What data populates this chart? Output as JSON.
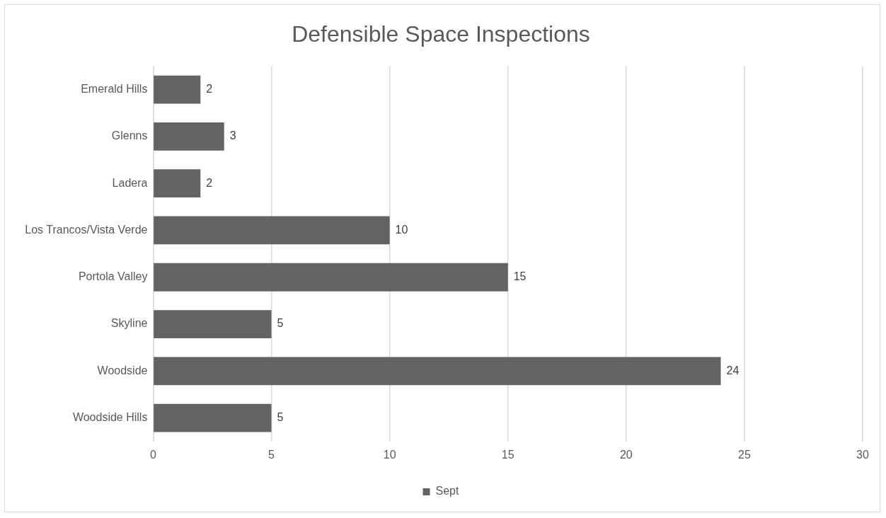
{
  "chart_data": {
    "type": "bar",
    "orientation": "horizontal",
    "title": "Defensible Space Inspections",
    "categories": [
      "Emerald Hills",
      "Glenns",
      "Ladera",
      "Los Trancos/Vista Verde",
      "Portola Valley",
      "Skyline",
      "Woodside",
      "Woodside Hills"
    ],
    "series": [
      {
        "name": "Sept",
        "color": "#636363",
        "values": [
          2,
          3,
          2,
          10,
          15,
          5,
          24,
          5
        ]
      }
    ],
    "xlim": [
      0,
      30
    ],
    "xticks": [
      0,
      5,
      10,
      15,
      20,
      25,
      30
    ],
    "grid": "x",
    "legend": "bottom",
    "data_labels": true
  }
}
